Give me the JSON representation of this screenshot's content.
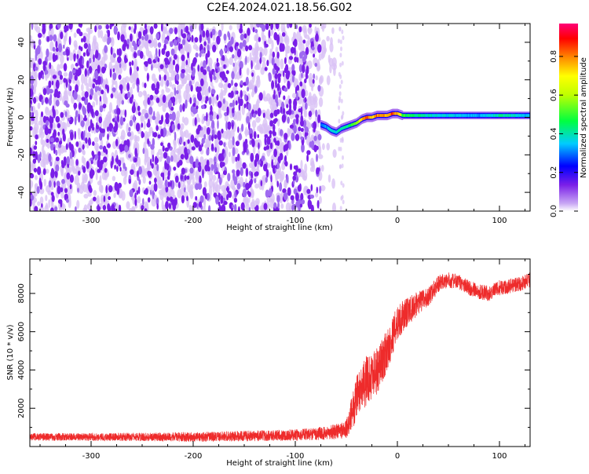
{
  "title": "C2E4.2024.021.18.56.G02",
  "colors": {
    "snr_line": "#ee2b2b",
    "spectro_noise": "#7a1fe8",
    "spectro_light": "#d9c2f5"
  },
  "colorbar": {
    "label": "Normalized spectral amplitude",
    "ticks": [
      "0.0",
      "0.2",
      "0.4",
      "0.6",
      "0.8"
    ],
    "tick_values": [
      0.0,
      0.2,
      0.4,
      0.6,
      0.8
    ],
    "range": [
      0,
      0.97
    ],
    "colormap": "rainbow (white, purple, blue, cyan, green, yellow, orange, red, magenta)"
  },
  "chart_data": [
    {
      "type": "heatmap",
      "xlabel": "Height of straight line (km)",
      "ylabel": "Frequency (Hz)",
      "xlim": [
        -360,
        130
      ],
      "ylim": [
        -50,
        50
      ],
      "xticks": [
        -300,
        -200,
        -100,
        0,
        100
      ],
      "xtick_labels": [
        "-300",
        "-200",
        "-100",
        "0",
        "100"
      ],
      "yticks": [
        -40,
        -20,
        0,
        20,
        40
      ],
      "ytick_labels": [
        "-40",
        "-20",
        "0",
        "20",
        "40"
      ],
      "noise_region": {
        "x_from": -360,
        "x_to": -75,
        "amplitude": 0.05
      },
      "signal_track": [
        {
          "x": -75,
          "freq": -4,
          "amp": 0.3
        },
        {
          "x": -70,
          "freq": -5,
          "amp": 0.35
        },
        {
          "x": -65,
          "freq": -7,
          "amp": 0.4
        },
        {
          "x": -60,
          "freq": -8,
          "amp": 0.4
        },
        {
          "x": -55,
          "freq": -6,
          "amp": 0.45
        },
        {
          "x": -50,
          "freq": -5,
          "amp": 0.45
        },
        {
          "x": -45,
          "freq": -4,
          "amp": 0.5
        },
        {
          "x": -40,
          "freq": -3,
          "amp": 0.6
        },
        {
          "x": -35,
          "freq": -1,
          "amp": 0.8
        },
        {
          "x": -30,
          "freq": 0,
          "amp": 0.85
        },
        {
          "x": -25,
          "freq": 0,
          "amp": 0.8
        },
        {
          "x": -20,
          "freq": 1,
          "amp": 0.9
        },
        {
          "x": -15,
          "freq": 1,
          "amp": 0.85
        },
        {
          "x": -10,
          "freq": 1,
          "amp": 0.8
        },
        {
          "x": -5,
          "freq": 2,
          "amp": 0.9
        },
        {
          "x": 0,
          "freq": 2,
          "amp": 0.85
        },
        {
          "x": 5,
          "freq": 1,
          "amp": 0.55
        },
        {
          "x": 10,
          "freq": 1,
          "amp": 0.5
        },
        {
          "x": 20,
          "freq": 1,
          "amp": 0.45
        },
        {
          "x": 40,
          "freq": 1,
          "amp": 0.4
        },
        {
          "x": 60,
          "freq": 1,
          "amp": 0.38
        },
        {
          "x": 80,
          "freq": 1,
          "amp": 0.35
        },
        {
          "x": 100,
          "freq": 1,
          "amp": 0.45
        },
        {
          "x": 120,
          "freq": 1,
          "amp": 0.4
        },
        {
          "x": 130,
          "freq": 1,
          "amp": 0.35
        }
      ]
    },
    {
      "type": "line",
      "xlabel": "Height of straight line (km)",
      "ylabel": "SNR (10 * v/v)",
      "xlim": [
        -360,
        130
      ],
      "ylim": [
        0,
        9800
      ],
      "xticks": [
        -300,
        -200,
        -100,
        0,
        100
      ],
      "xtick_labels": [
        "-300",
        "-200",
        "-100",
        "0",
        "100"
      ],
      "yticks": [
        2000,
        4000,
        6000,
        8000
      ],
      "ytick_labels": [
        "2000",
        "4000",
        "6000",
        "8000"
      ],
      "series": [
        {
          "color": "#ee2b2b",
          "x": [
            -360,
            -300,
            -200,
            -100,
            -70,
            -50,
            -40,
            -30,
            -20,
            -10,
            0,
            10,
            20,
            30,
            40,
            50,
            60,
            70,
            80,
            90,
            100,
            110,
            120,
            130
          ],
          "y": [
            500,
            500,
            500,
            600,
            700,
            900,
            2500,
            3500,
            4000,
            5000,
            6500,
            7000,
            7500,
            7800,
            8500,
            8700,
            8600,
            8300,
            8100,
            8000,
            8300,
            8400,
            8500,
            8700
          ],
          "noise": [
            200,
            200,
            250,
            300,
            350,
            500,
            1200,
            1300,
            1300,
            1100,
            900,
            800,
            600,
            500,
            450,
            400,
            400,
            400,
            400,
            400,
            400,
            400,
            400,
            400
          ]
        }
      ]
    }
  ]
}
